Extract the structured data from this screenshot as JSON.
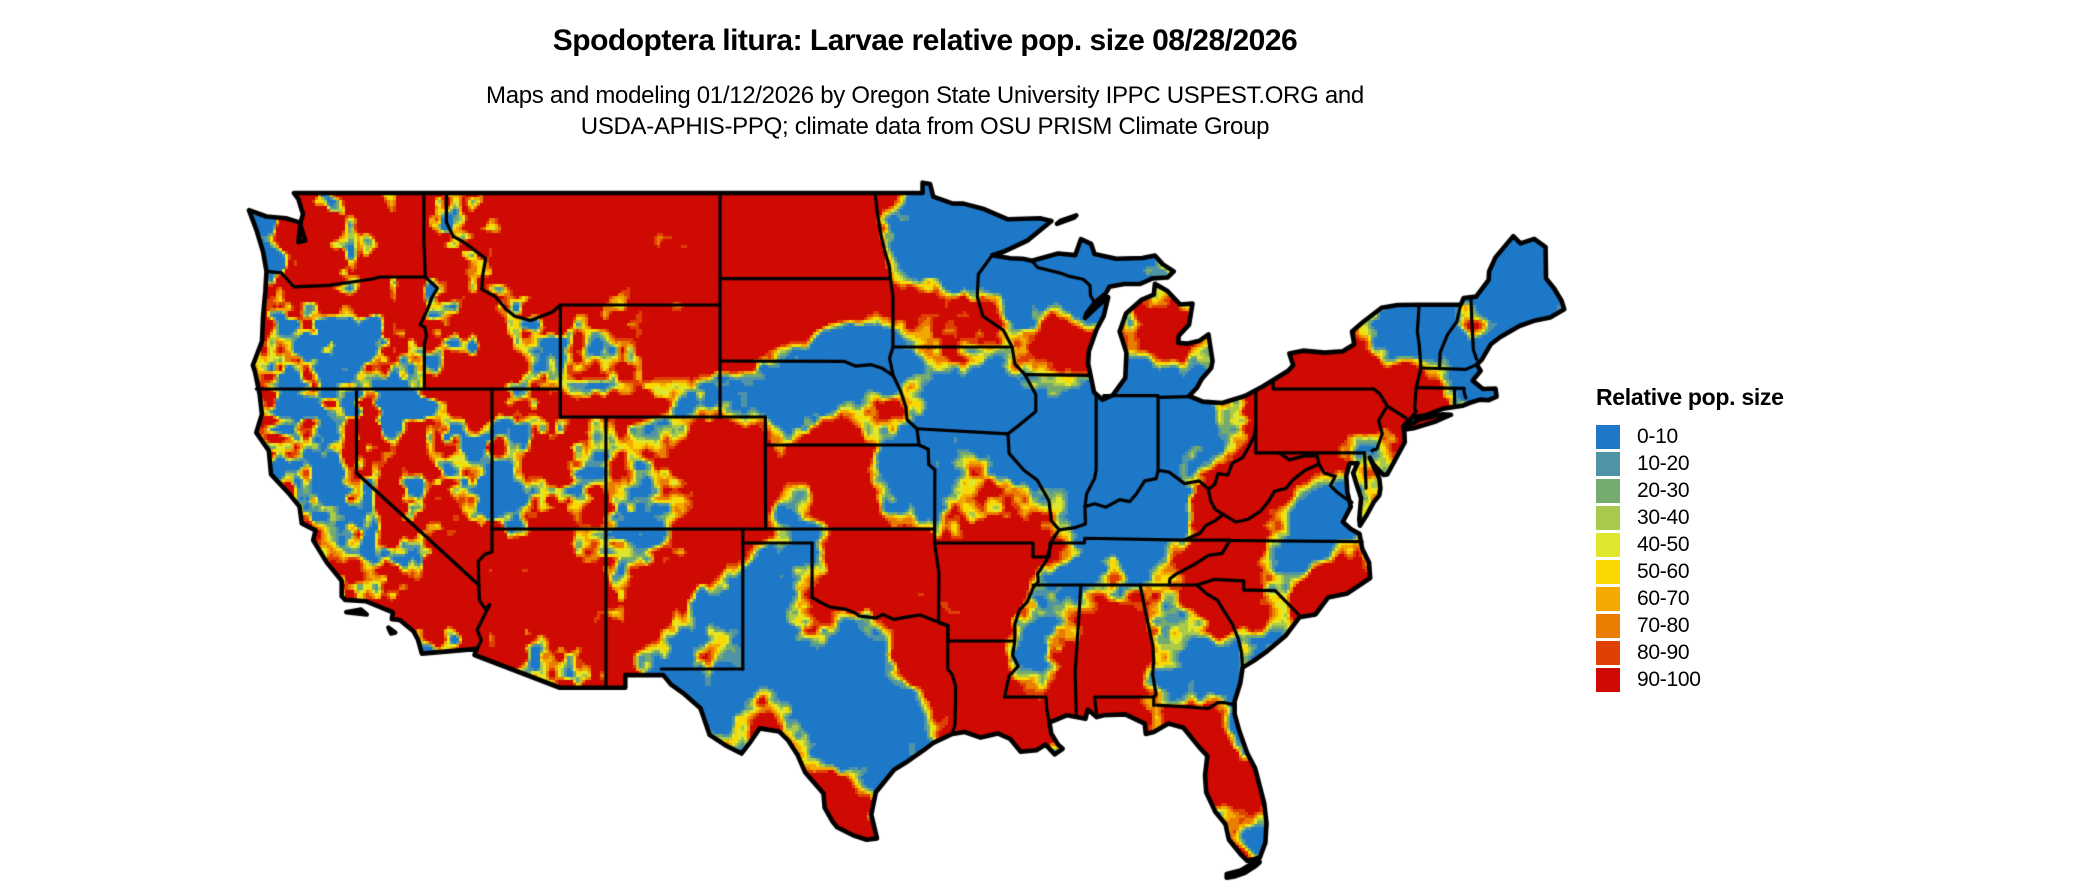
{
  "title": "Spodoptera litura: Larvae relative pop. size 08/28/2026",
  "subtitle_line1": "Maps and modeling 01/12/2026 by Oregon State University IPPC USPEST.ORG and",
  "subtitle_line2": "USDA-APHIS-PPQ; climate data from OSU PRISM Climate Group",
  "legend": {
    "title": "Relative pop. size",
    "classes": [
      {
        "label": "0-10",
        "color": "#1E78C8"
      },
      {
        "label": "10-20",
        "color": "#4E93A6"
      },
      {
        "label": "20-30",
        "color": "#74AB6E"
      },
      {
        "label": "30-40",
        "color": "#A9C94B"
      },
      {
        "label": "40-50",
        "color": "#DFE72D"
      },
      {
        "label": "50-60",
        "color": "#F8DA02"
      },
      {
        "label": "60-70",
        "color": "#F3A802"
      },
      {
        "label": "70-80",
        "color": "#E87D02"
      },
      {
        "label": "80-90",
        "color": "#DF4102"
      },
      {
        "label": "90-100",
        "color": "#CE0A02"
      }
    ]
  },
  "map": {
    "border_color": "#000000",
    "water_color": "#FFFFFF"
  }
}
